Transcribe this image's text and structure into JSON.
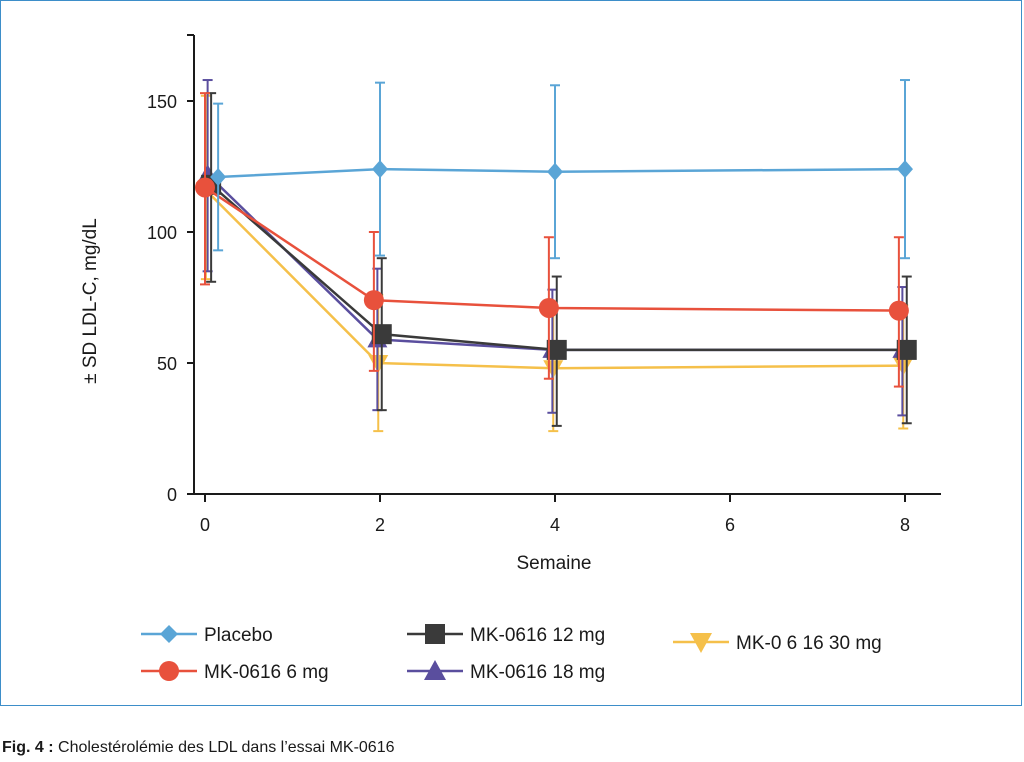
{
  "chart_data": {
    "type": "line",
    "title": "",
    "xlabel": "Semaine",
    "ylabel": "± SD LDL-C, mg/dL",
    "x_ticks": [
      0,
      2,
      4,
      6,
      8
    ],
    "y_ticks": [
      0,
      50,
      100,
      150
    ],
    "xlim": [
      0,
      8
    ],
    "ylim": [
      0,
      175
    ],
    "grid": false,
    "legend_position": "bottom",
    "series": [
      {
        "name": "Placebo",
        "color": "#5aa5d6",
        "marker": "diamond",
        "points": [
          {
            "x": 0.15,
            "y": 121,
            "lo": 93,
            "hi": 149
          },
          {
            "x": 2,
            "y": 124,
            "lo": 91,
            "hi": 157
          },
          {
            "x": 4,
            "y": 123,
            "lo": 90,
            "hi": 156
          },
          {
            "x": 8,
            "y": 124,
            "lo": 90,
            "hi": 158
          }
        ]
      },
      {
        "name": "MK-0616 6 mg",
        "color": "#e8513c",
        "marker": "circle",
        "points": [
          {
            "x": 0,
            "y": 117,
            "lo": 80,
            "hi": 153
          },
          {
            "x": 1.93,
            "y": 74,
            "lo": 47,
            "hi": 100
          },
          {
            "x": 3.93,
            "y": 71,
            "lo": 44,
            "hi": 98
          },
          {
            "x": 7.93,
            "y": 70,
            "lo": 41,
            "hi": 98
          }
        ]
      },
      {
        "name": "MK-0616 12 mg",
        "color": "#3a3a3a",
        "marker": "square",
        "points": [
          {
            "x": 0.07,
            "y": 118,
            "lo": 81,
            "hi": 153
          },
          {
            "x": 2.02,
            "y": 61,
            "lo": 32,
            "hi": 90
          },
          {
            "x": 4.02,
            "y": 55,
            "lo": 26,
            "hi": 83
          },
          {
            "x": 8.02,
            "y": 55,
            "lo": 27,
            "hi": 83
          }
        ]
      },
      {
        "name": "MK-0616 18 mg",
        "color": "#5a4e9e",
        "marker": "triangle-up",
        "points": [
          {
            "x": 0.03,
            "y": 122,
            "lo": 85,
            "hi": 158
          },
          {
            "x": 1.97,
            "y": 59,
            "lo": 32,
            "hi": 86
          },
          {
            "x": 3.97,
            "y": 55,
            "lo": 31,
            "hi": 78
          },
          {
            "x": 7.97,
            "y": 55,
            "lo": 30,
            "hi": 79
          }
        ]
      },
      {
        "name": "MK-0616 30 mg",
        "color": "#f5c04a",
        "marker": "triangle-down",
        "points": [
          {
            "x": 0.01,
            "y": 116,
            "lo": 82,
            "hi": 152
          },
          {
            "x": 1.98,
            "y": 50,
            "lo": 24,
            "hi": 76
          },
          {
            "x": 3.98,
            "y": 48,
            "lo": 24,
            "hi": 72
          },
          {
            "x": 7.98,
            "y": 49,
            "lo": 25,
            "hi": 72
          }
        ]
      }
    ]
  },
  "legend": {
    "placebo": "Placebo",
    "mk_6": "MK-0616 6 mg",
    "mk_12": "MK-0616 12 mg",
    "mk_18": "MK-0616 18 mg",
    "mk_30": "MK-0 6 16  30  mg"
  },
  "caption": {
    "label": "Fig. 4 :",
    "text": "Cholestérolémie des LDL dans l’essai MK-0616"
  }
}
